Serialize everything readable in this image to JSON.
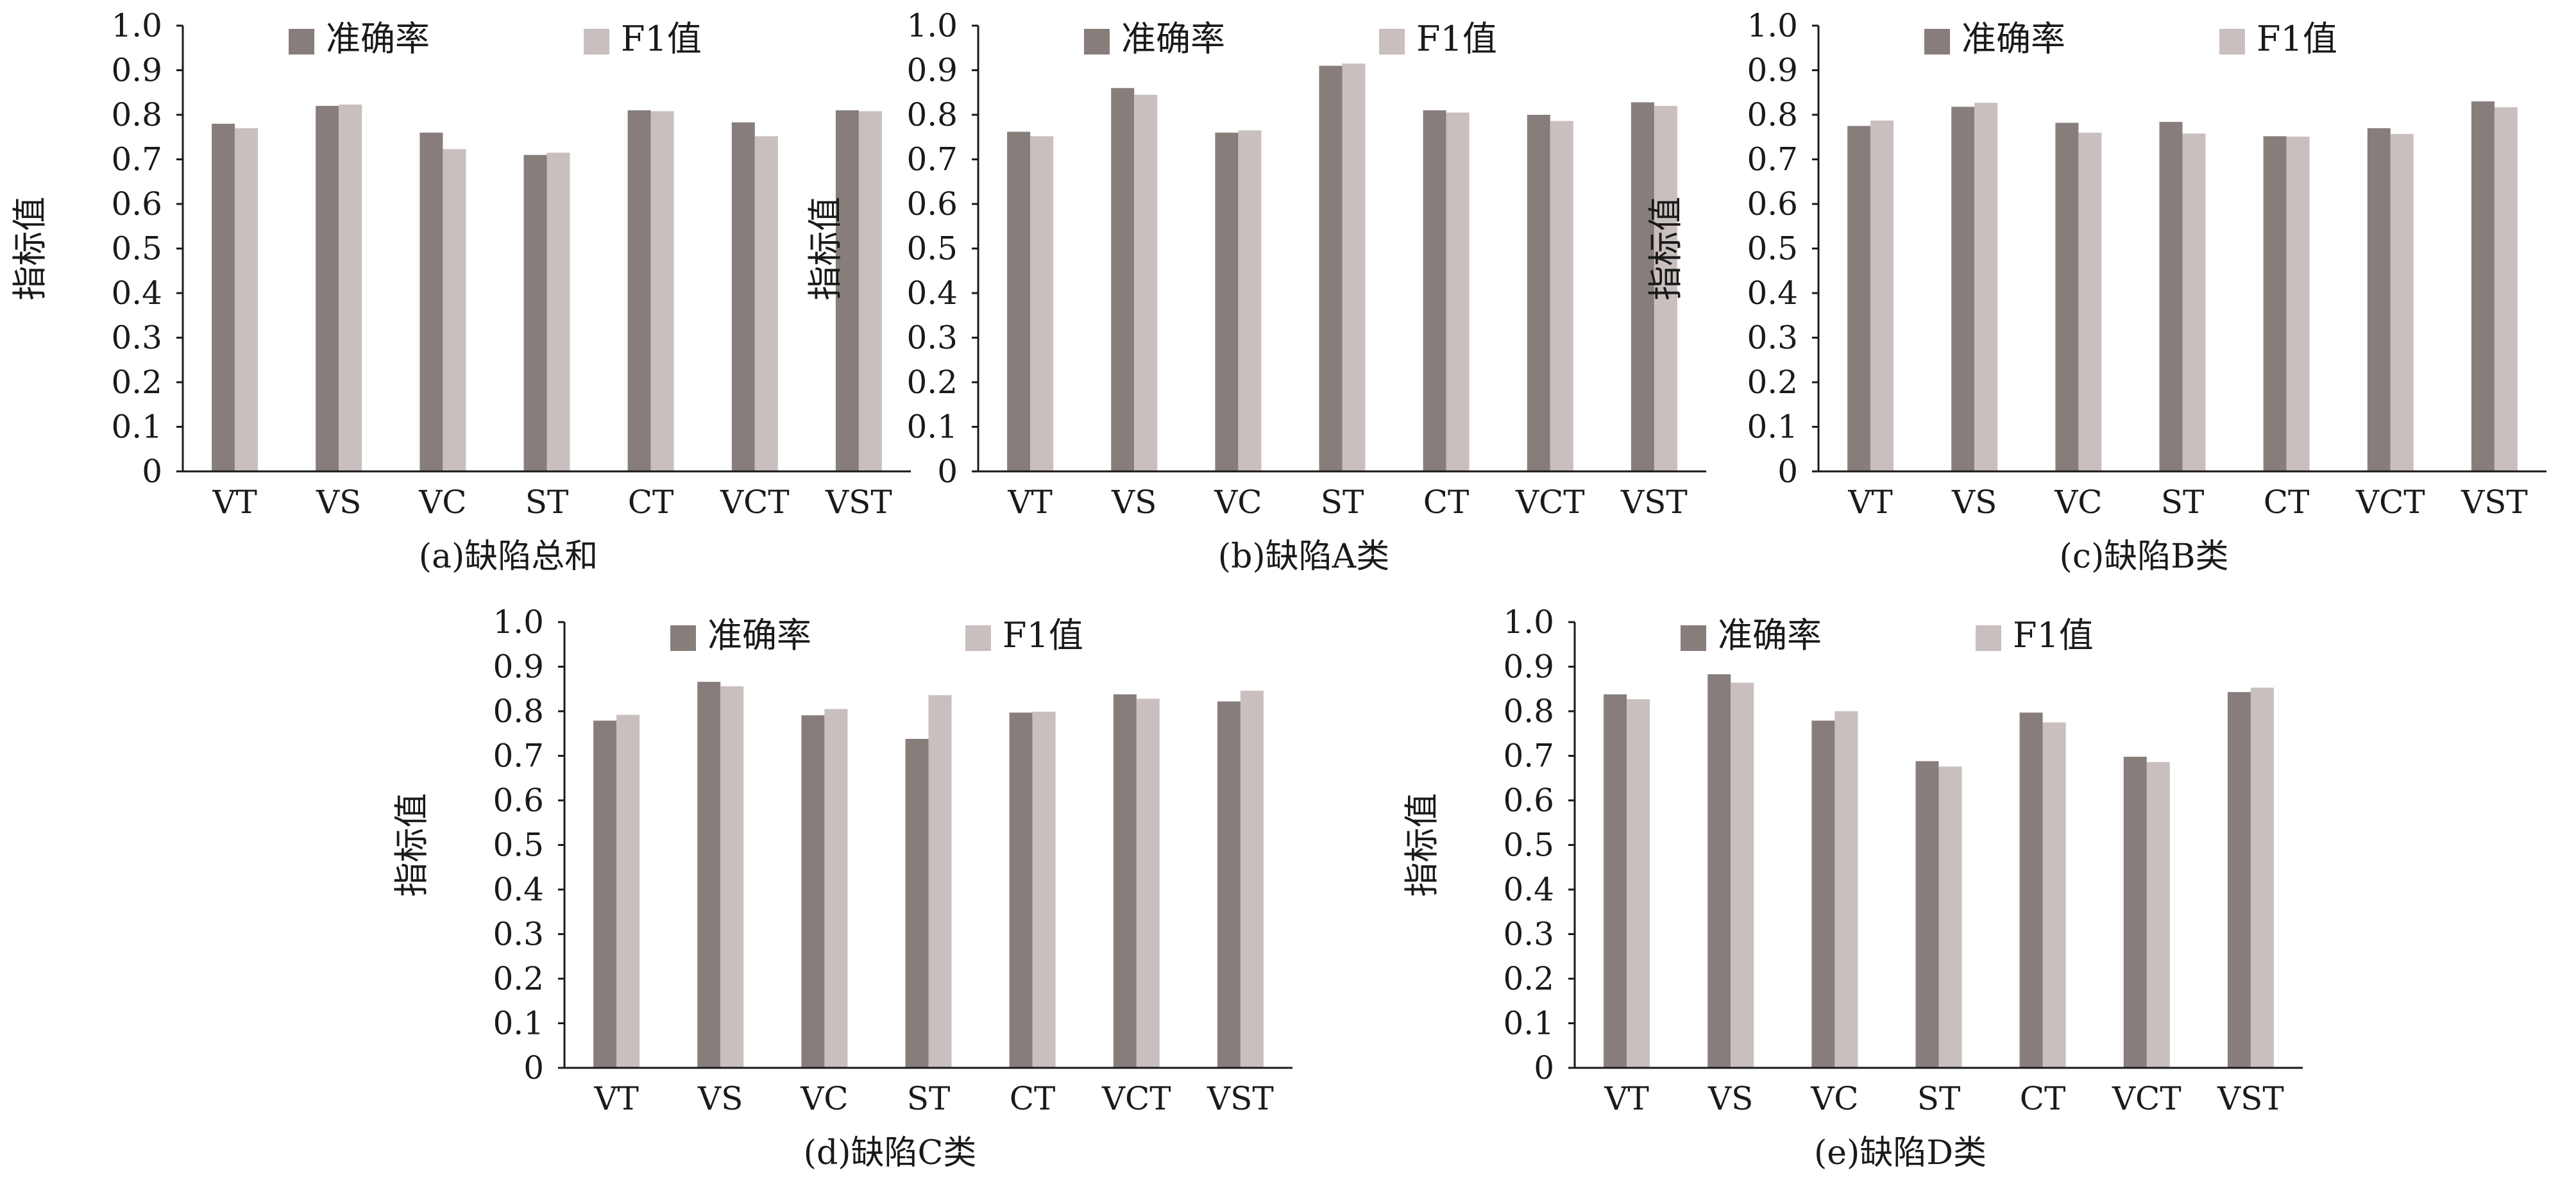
{
  "colors": {
    "accuracy": "#877e7c",
    "f1": "#c9bfbe",
    "axis": "#1a1a1a"
  },
  "chart_data": [
    {
      "type": "bar",
      "title": "(a)缺陷总和",
      "xlabel": "",
      "ylabel": "指标值",
      "ylim": [
        0,
        1.0
      ],
      "yticks": [
        "0",
        "0.1",
        "0.2",
        "0.3",
        "0.4",
        "0.5",
        "0.6",
        "0.7",
        "0.8",
        "0.9",
        "1.0"
      ],
      "categories": [
        "VT",
        "VS",
        "VC",
        "ST",
        "CT",
        "VCT",
        "VST"
      ],
      "series": [
        {
          "name": "准确率",
          "values": [
            0.78,
            0.82,
            0.76,
            0.71,
            0.81,
            0.783,
            0.81
          ]
        },
        {
          "name": "F1值",
          "values": [
            0.77,
            0.823,
            0.723,
            0.715,
            0.808,
            0.752,
            0.808
          ]
        }
      ],
      "legend": "top"
    },
    {
      "type": "bar",
      "title": "(b)缺陷A类",
      "xlabel": "",
      "ylabel": "指标值",
      "ylim": [
        0,
        1.0
      ],
      "yticks": [
        "0",
        "0.1",
        "0.2",
        "0.3",
        "0.4",
        "0.5",
        "0.6",
        "0.7",
        "0.8",
        "0.9",
        "1.0"
      ],
      "categories": [
        "VT",
        "VS",
        "VC",
        "ST",
        "CT",
        "VCT",
        "VST"
      ],
      "series": [
        {
          "name": "准确率",
          "values": [
            0.762,
            0.86,
            0.76,
            0.91,
            0.81,
            0.8,
            0.828
          ]
        },
        {
          "name": "F1值",
          "values": [
            0.752,
            0.845,
            0.765,
            0.915,
            0.805,
            0.786,
            0.82
          ]
        }
      ],
      "legend": "top"
    },
    {
      "type": "bar",
      "title": "(c)缺陷B类",
      "xlabel": "",
      "ylabel": "指标值",
      "ylim": [
        0,
        1.0
      ],
      "yticks": [
        "0",
        "0.1",
        "0.2",
        "0.3",
        "0.4",
        "0.5",
        "0.6",
        "0.7",
        "0.8",
        "0.9",
        "1.0"
      ],
      "categories": [
        "VT",
        "VS",
        "VC",
        "ST",
        "CT",
        "VCT",
        "VST"
      ],
      "series": [
        {
          "name": "准确率",
          "values": [
            0.775,
            0.818,
            0.782,
            0.784,
            0.752,
            0.77,
            0.83
          ]
        },
        {
          "name": "F1值",
          "values": [
            0.787,
            0.827,
            0.76,
            0.758,
            0.751,
            0.757,
            0.817
          ]
        }
      ],
      "legend": "top"
    },
    {
      "type": "bar",
      "title": "(d)缺陷C类",
      "xlabel": "",
      "ylabel": "指标值",
      "ylim": [
        0,
        1.0
      ],
      "yticks": [
        "0",
        "0.1",
        "0.2",
        "0.3",
        "0.4",
        "0.5",
        "0.6",
        "0.7",
        "0.8",
        "0.9",
        "1.0"
      ],
      "categories": [
        "VT",
        "VS",
        "VC",
        "ST",
        "CT",
        "VCT",
        "VST"
      ],
      "series": [
        {
          "name": "准确率",
          "values": [
            0.779,
            0.866,
            0.791,
            0.738,
            0.797,
            0.838,
            0.822
          ]
        },
        {
          "name": "F1值",
          "values": [
            0.792,
            0.856,
            0.805,
            0.836,
            0.799,
            0.828,
            0.846
          ]
        }
      ],
      "legend": "top"
    },
    {
      "type": "bar",
      "title": "(e)缺陷D类",
      "xlabel": "",
      "ylabel": "指标值",
      "ylim": [
        0,
        1.0
      ],
      "yticks": [
        "0",
        "0.1",
        "0.2",
        "0.3",
        "0.4",
        "0.5",
        "0.6",
        "0.7",
        "0.8",
        "0.9",
        "1.0"
      ],
      "categories": [
        "VT",
        "VS",
        "VC",
        "ST",
        "CT",
        "VCT",
        "VST"
      ],
      "series": [
        {
          "name": "准确率",
          "values": [
            0.838,
            0.883,
            0.779,
            0.688,
            0.797,
            0.698,
            0.843
          ]
        },
        {
          "name": "F1值",
          "values": [
            0.827,
            0.864,
            0.8,
            0.676,
            0.775,
            0.686,
            0.853
          ]
        }
      ],
      "legend": "top"
    }
  ]
}
